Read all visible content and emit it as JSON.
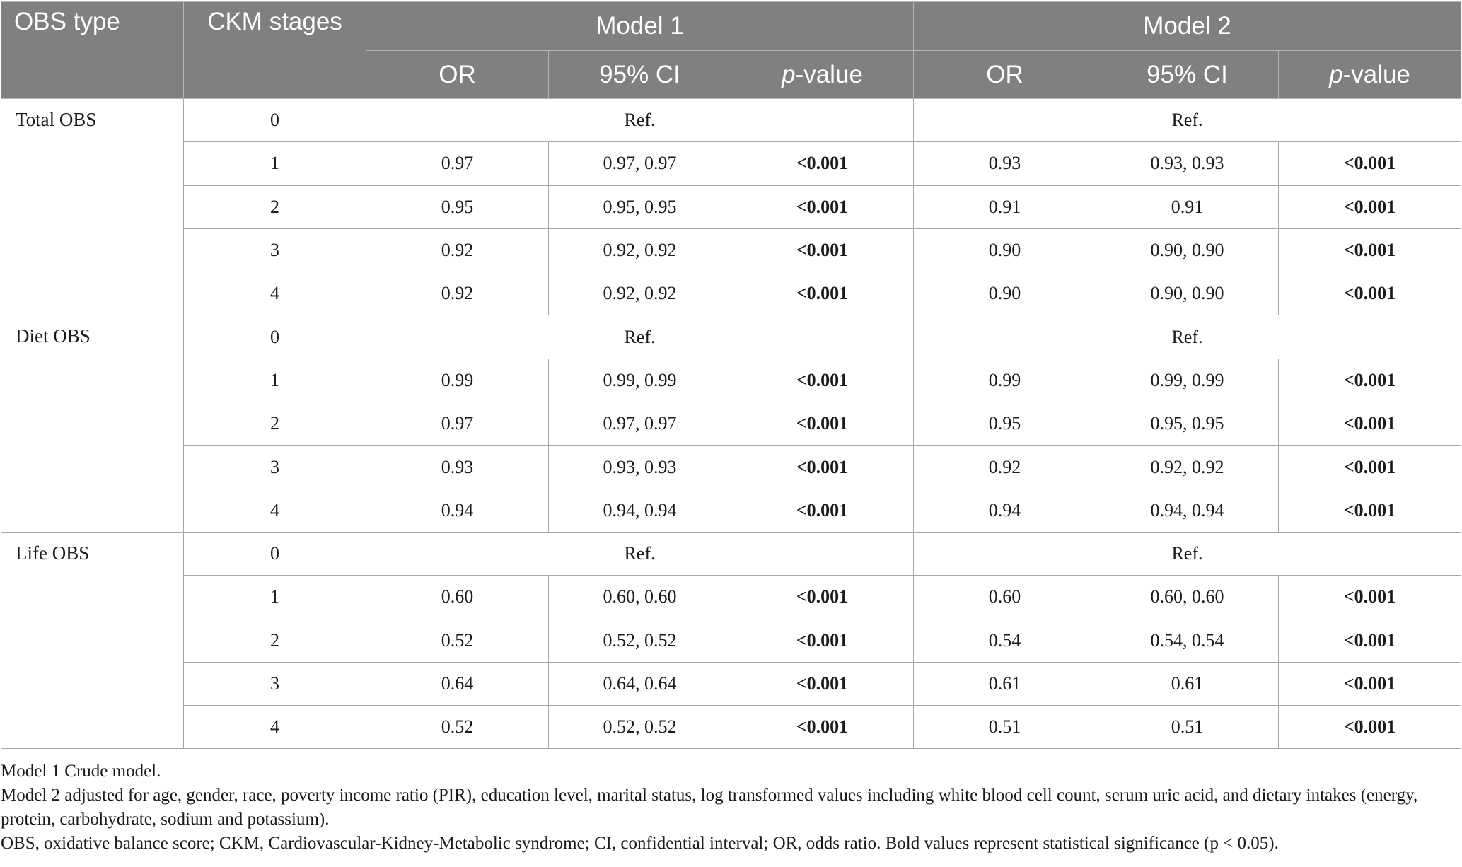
{
  "table": {
    "header": {
      "obs_type": "OBS type",
      "ckm_stages": "CKM stages",
      "model1": "Model 1",
      "model2": "Model 2",
      "or": "OR",
      "ci": "95% CI",
      "p_italic": "p",
      "p_suffix": "-value"
    },
    "groups": [
      {
        "label": "Total OBS",
        "ref": "Ref.",
        "rows": [
          {
            "stage": "0"
          },
          {
            "stage": "1",
            "m1_or": "0.97",
            "m1_ci": "0.97, 0.97",
            "m1_p": "<0.001",
            "m2_or": "0.93",
            "m2_ci": "0.93, 0.93",
            "m2_p": "<0.001"
          },
          {
            "stage": "2",
            "m1_or": "0.95",
            "m1_ci": "0.95, 0.95",
            "m1_p": "<0.001",
            "m2_or": "0.91",
            "m2_ci": "0.91",
            "m2_p": "<0.001"
          },
          {
            "stage": "3",
            "m1_or": "0.92",
            "m1_ci": "0.92, 0.92",
            "m1_p": "<0.001",
            "m2_or": "0.90",
            "m2_ci": "0.90, 0.90",
            "m2_p": "<0.001"
          },
          {
            "stage": "4",
            "m1_or": "0.92",
            "m1_ci": "0.92, 0.92",
            "m1_p": "<0.001",
            "m2_or": "0.90",
            "m2_ci": "0.90, 0.90",
            "m2_p": "<0.001"
          }
        ]
      },
      {
        "label": "Diet OBS",
        "ref": "Ref.",
        "rows": [
          {
            "stage": "0"
          },
          {
            "stage": "1",
            "m1_or": "0.99",
            "m1_ci": "0.99, 0.99",
            "m1_p": "<0.001",
            "m2_or": "0.99",
            "m2_ci": "0.99, 0.99",
            "m2_p": "<0.001"
          },
          {
            "stage": "2",
            "m1_or": "0.97",
            "m1_ci": "0.97, 0.97",
            "m1_p": "<0.001",
            "m2_or": "0.95",
            "m2_ci": "0.95, 0.95",
            "m2_p": "<0.001"
          },
          {
            "stage": "3",
            "m1_or": "0.93",
            "m1_ci": "0.93, 0.93",
            "m1_p": "<0.001",
            "m2_or": "0.92",
            "m2_ci": "0.92, 0.92",
            "m2_p": "<0.001"
          },
          {
            "stage": "4",
            "m1_or": "0.94",
            "m1_ci": "0.94, 0.94",
            "m1_p": "<0.001",
            "m2_or": "0.94",
            "m2_ci": "0.94, 0.94",
            "m2_p": "<0.001"
          }
        ]
      },
      {
        "label": "Life OBS",
        "ref": "Ref.",
        "rows": [
          {
            "stage": "0"
          },
          {
            "stage": "1",
            "m1_or": "0.60",
            "m1_ci": "0.60, 0.60",
            "m1_p": "<0.001",
            "m2_or": "0.60",
            "m2_ci": "0.60, 0.60",
            "m2_p": "<0.001"
          },
          {
            "stage": "2",
            "m1_or": "0.52",
            "m1_ci": "0.52, 0.52",
            "m1_p": "<0.001",
            "m2_or": "0.54",
            "m2_ci": "0.54, 0.54",
            "m2_p": "<0.001"
          },
          {
            "stage": "3",
            "m1_or": "0.64",
            "m1_ci": "0.64, 0.64",
            "m1_p": "<0.001",
            "m2_or": "0.61",
            "m2_ci": "0.61",
            "m2_p": "<0.001"
          },
          {
            "stage": "4",
            "m1_or": "0.52",
            "m1_ci": "0.52, 0.52",
            "m1_p": "<0.001",
            "m2_or": "0.51",
            "m2_ci": "0.51",
            "m2_p": "<0.001"
          }
        ]
      }
    ]
  },
  "notes": {
    "line1": "Model 1 Crude model.",
    "line2": "Model 2 adjusted for age, gender, race, poverty income ratio (PIR), education level, marital status, log transformed values including white blood cell count, serum uric acid, and dietary intakes (energy, protein, carbohydrate, sodium and potassium).",
    "line3": "OBS, oxidative balance score; CKM, Cardiovascular-Kidney-Metabolic syndrome; CI, confidential interval; OR, odds ratio. Bold values represent statistical significance (p < 0.05)."
  },
  "colors": {
    "header_bg": "#808080",
    "header_text": "#ffffff",
    "border": "#a6a6a6"
  }
}
